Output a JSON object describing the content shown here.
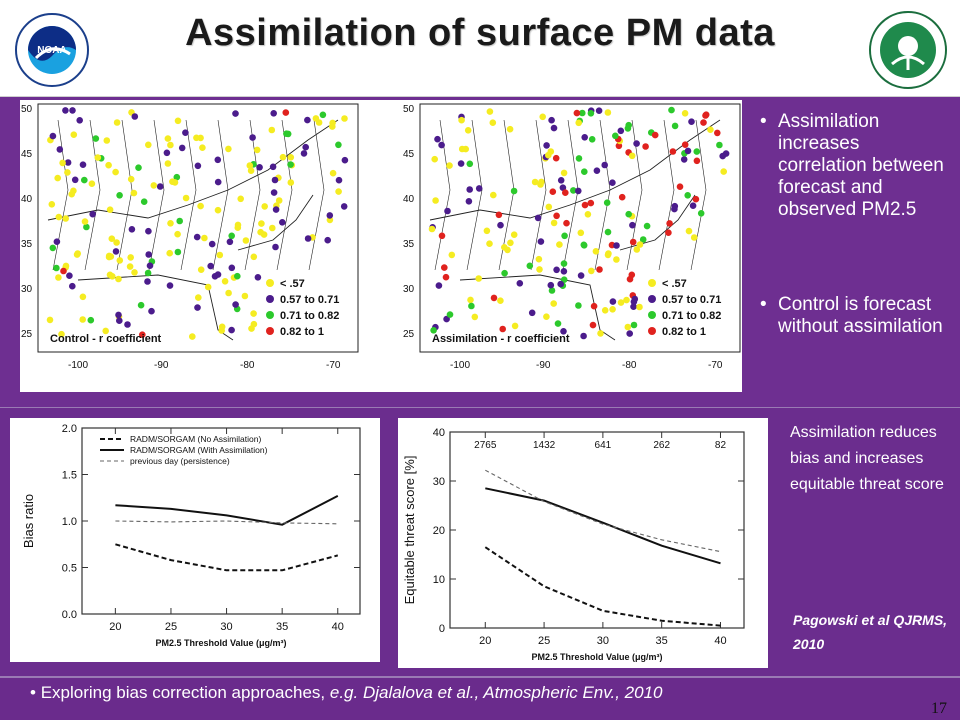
{
  "title": "Assimilation of surface PM data",
  "logos": {
    "left": "NOAA",
    "right": "EPA"
  },
  "maps": {
    "lat_ticks": [
      "50",
      "45",
      "40",
      "35",
      "30",
      "25"
    ],
    "lon_ticks": [
      "-100",
      "-90",
      "-80",
      "-70"
    ],
    "legend": [
      "< .57",
      "0.57 to 0.71",
      "0.71 to 0.82",
      "0.82 to 1"
    ],
    "legend_colors": [
      "#f5ec21",
      "#4b1c8c",
      "#2cc92c",
      "#e0221e"
    ],
    "left_caption": "Control - r coefficient",
    "right_caption": "Assimilation - r coefficient"
  },
  "bullets": [
    "Assimilation increases correlation between forecast and observed PM2.5",
    "Control is forecast without assimilation"
  ],
  "chart_data": [
    {
      "type": "line",
      "ylabel": "Bias ratio",
      "xlabel": "PM2.5 Threshold Value (μg/m³)",
      "x": [
        20,
        25,
        30,
        35,
        40
      ],
      "xlim": [
        17,
        42
      ],
      "ylim": [
        0,
        2.0
      ],
      "yticks": [
        "0.0",
        "0.5",
        "1.0",
        "1.5",
        "2.0"
      ],
      "legend": [
        "RADM/SORGAM (No Assimilation)",
        "RADM/SORGAM (With Assimilation)",
        "previous day (persistence)"
      ],
      "series": [
        {
          "name": "RADM/SORGAM (No Assimilation)",
          "style": "dashed",
          "values": [
            0.75,
            0.58,
            0.47,
            0.47,
            0.63
          ]
        },
        {
          "name": "RADM/SORGAM (With Assimilation)",
          "style": "solid",
          "values": [
            1.17,
            1.13,
            1.06,
            0.96,
            1.27
          ]
        },
        {
          "name": "previous day (persistence)",
          "style": "thin-dashed",
          "values": [
            1.0,
            0.99,
            1.0,
            0.98,
            0.97
          ]
        }
      ]
    },
    {
      "type": "line",
      "ylabel": "Equitable threat score [%]",
      "xlabel": "PM2.5 Threshold Value (μg/m³)",
      "x": [
        20,
        25,
        30,
        35,
        40
      ],
      "xlim": [
        17,
        42
      ],
      "ylim": [
        0,
        40
      ],
      "yticks": [
        "0",
        "10",
        "20",
        "30",
        "40"
      ],
      "top_counts": [
        "2765",
        "1432",
        "641",
        "262",
        "82"
      ],
      "series": [
        {
          "name": "",
          "style": "dashed",
          "values": [
            16.5,
            8.5,
            3.5,
            1.5,
            0.5
          ]
        },
        {
          "name": "",
          "style": "solid",
          "values": [
            28.5,
            26.0,
            21.5,
            16.8,
            13.2
          ]
        },
        {
          "name": "",
          "style": "thin-dashed",
          "values": [
            32.2,
            25.8,
            21.2,
            18.0,
            15.6
          ]
        }
      ]
    }
  ],
  "note2": "Assimilation reduces bias and increases equitable threat score",
  "citation": "Pagowski et al QJRMS, 2010",
  "footer": {
    "bullet": "•",
    "lead": "Exploring bias correction approaches, ",
    "italic": "e.g. Djalalova et al., Atmospheric Env., 2010"
  },
  "page_number": "17"
}
